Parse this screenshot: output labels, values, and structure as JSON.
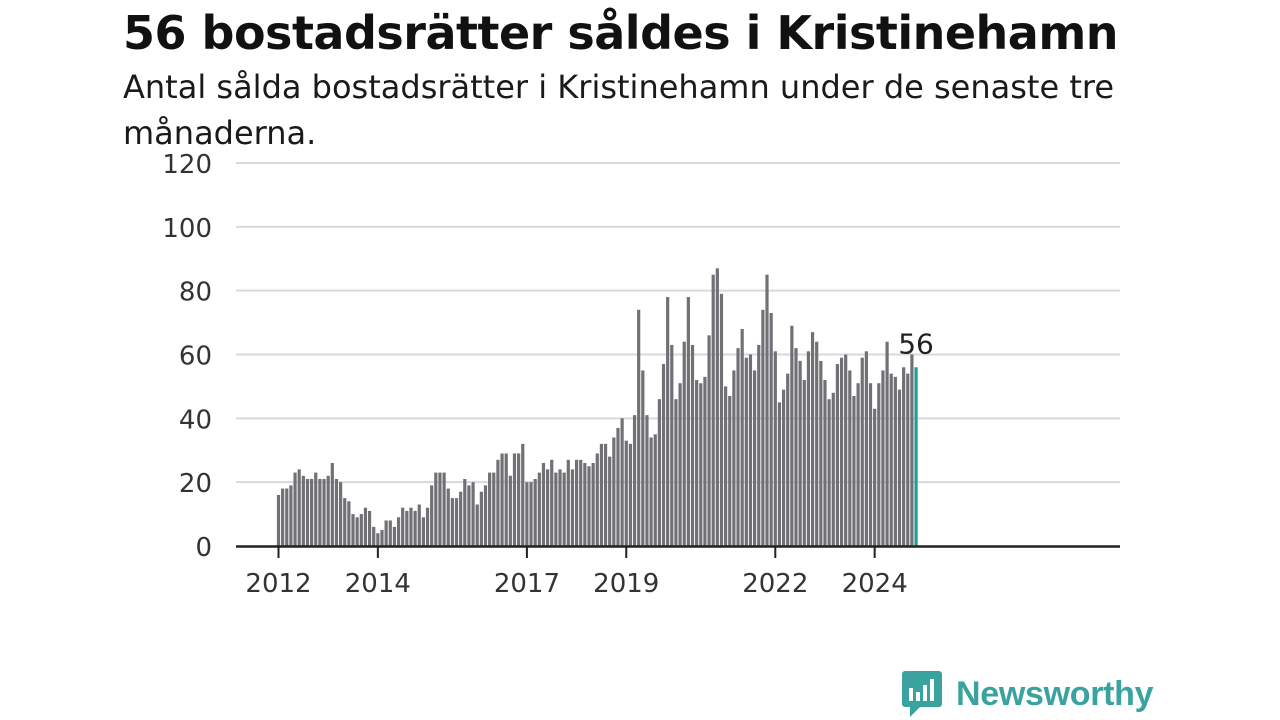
{
  "header": {
    "title": "56 bostadsrätter såldes i Kristinehamn",
    "subtitle": "Antal sålda bostadsrätter i Kristinehamn under de senaste tre månaderna."
  },
  "brand": {
    "name": "Newsworthy",
    "icon": "newsworthy-logo-icon",
    "color": "#3aa3a0"
  },
  "chart_data": {
    "type": "bar",
    "title": "56 bostadsrätter såldes i Kristinehamn",
    "subtitle": "Antal sålda bostadsrätter i Kristinehamn under de senaste tre månaderna.",
    "xlabel": "",
    "ylabel": "",
    "ylim": [
      0,
      120
    ],
    "yticks": [
      0,
      20,
      40,
      60,
      80,
      100,
      120
    ],
    "grid": true,
    "bar_color": "#717075",
    "highlight_color": "#1a9e96",
    "start": "2012-01",
    "xticks": [
      {
        "label": "2012",
        "index": 0
      },
      {
        "label": "2014",
        "index": 24
      },
      {
        "label": "2017",
        "index": 60
      },
      {
        "label": "2019",
        "index": 84
      },
      {
        "label": "2022",
        "index": 120
      },
      {
        "label": "2024",
        "index": 144
      }
    ],
    "values": [
      16,
      18,
      18,
      19,
      23,
      24,
      22,
      21,
      21,
      23,
      21,
      21,
      22,
      26,
      21,
      20,
      15,
      14,
      10,
      9,
      10,
      12,
      11,
      6,
      4,
      5,
      8,
      8,
      6,
      9,
      12,
      11,
      12,
      11,
      13,
      9,
      12,
      19,
      23,
      23,
      23,
      18,
      15,
      15,
      17,
      21,
      19,
      20,
      13,
      17,
      19,
      23,
      23,
      27,
      29,
      29,
      22,
      29,
      29,
      32,
      20,
      20,
      21,
      23,
      26,
      24,
      27,
      23,
      24,
      23,
      27,
      24,
      27,
      27,
      26,
      25,
      26,
      29,
      32,
      32,
      28,
      34,
      37,
      40,
      33,
      32,
      41,
      74,
      55,
      41,
      34,
      35,
      46,
      57,
      78,
      63,
      46,
      51,
      64,
      78,
      63,
      52,
      51,
      53,
      66,
      85,
      87,
      79,
      50,
      47,
      55,
      62,
      68,
      59,
      60,
      55,
      63,
      74,
      85,
      73,
      61,
      45,
      49,
      54,
      69,
      62,
      58,
      52,
      61,
      67,
      64,
      58,
      52,
      46,
      48,
      57,
      59,
      60,
      55,
      47,
      51,
      59,
      61,
      51,
      43,
      51,
      55,
      64,
      54,
      53,
      49,
      56,
      54,
      60,
      56
    ],
    "highlight": {
      "label": "56",
      "value": 56
    }
  }
}
